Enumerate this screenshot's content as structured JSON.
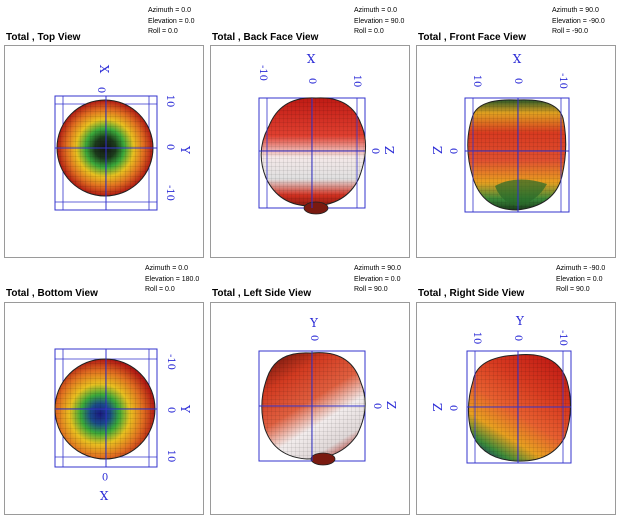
{
  "views": [
    {
      "title": "Total , Top View",
      "params": [
        "Azimuth = 0.0",
        "Elevation = 0.0",
        "Roll = 0.0"
      ],
      "axes": {
        "top": "X",
        "right": "Y"
      },
      "ticks": {
        "right": [
          "10",
          "0",
          "-10"
        ]
      },
      "colors": {
        "outer": "#c81e1e",
        "mid": "#e8a020",
        "inner": "#3aa83a",
        "core": "#141414"
      }
    },
    {
      "title": "Total , Back Face View",
      "params": [
        "Azimuth = 0.0",
        "Elevation = 90.0",
        "Roll = 0.0"
      ],
      "axes": {
        "top": "X",
        "right": "Z"
      },
      "ticks": {
        "top": [
          "-10",
          "0",
          "10"
        ],
        "right": [
          "0"
        ]
      },
      "colors": {
        "outer": "#7a1a10",
        "mid": "#d23a20",
        "inner": "#f2f2f2",
        "core": "#cfcfcf"
      }
    },
    {
      "title": "Total , Front Face View",
      "params": [
        "Azimuth = 90.0",
        "Elevation = -90.0",
        "Roll = -90.0"
      ],
      "axes": {
        "top": "X",
        "left": "Z"
      },
      "ticks": {
        "top": [
          "10",
          "0",
          "-10"
        ],
        "left": [
          "0"
        ]
      },
      "colors": {
        "outer": "#2a5a2a",
        "mid": "#e8a020",
        "inner": "#d23a20",
        "core": "#c81e1e"
      }
    },
    {
      "title": "Total , Bottom View",
      "params": [
        "Azimuth = 0.0",
        "Elevation = 180.0",
        "Roll = 0.0"
      ],
      "axes": {
        "bottom": "X",
        "right": "Y"
      },
      "ticks": {
        "right": [
          "-10",
          "0",
          "10"
        ],
        "bottom": [
          "0"
        ]
      },
      "colors": {
        "outer": "#c81e1e",
        "mid": "#e8a020",
        "inner": "#3aa83a",
        "core": "#1a1a80"
      }
    },
    {
      "title": "Total , Left Side View",
      "params": [
        "Azimuth = 90.0",
        "Elevation = 0.0",
        "Roll = 90.0"
      ],
      "axes": {
        "top": "Y",
        "right": "Z"
      },
      "ticks": {
        "top": [
          "0"
        ],
        "right": [
          "0"
        ]
      },
      "colors": {
        "outer": "#7a1a10",
        "mid": "#d23a20",
        "inner": "#f2f2f2",
        "core": "#cfcfcf"
      }
    },
    {
      "title": "Total , Right Side View",
      "params": [
        "Azimuth = -90.0",
        "Elevation = 0.0",
        "Roll = 90.0"
      ],
      "axes": {
        "top": "Y",
        "left": "Z"
      },
      "ticks": {
        "top": [
          "10",
          "0",
          "-10"
        ],
        "left": [
          "0"
        ]
      },
      "colors": {
        "outer": "#2a5a2a",
        "mid": "#e8a020",
        "inner": "#d23a20",
        "core": "#c81e1e"
      }
    }
  ]
}
